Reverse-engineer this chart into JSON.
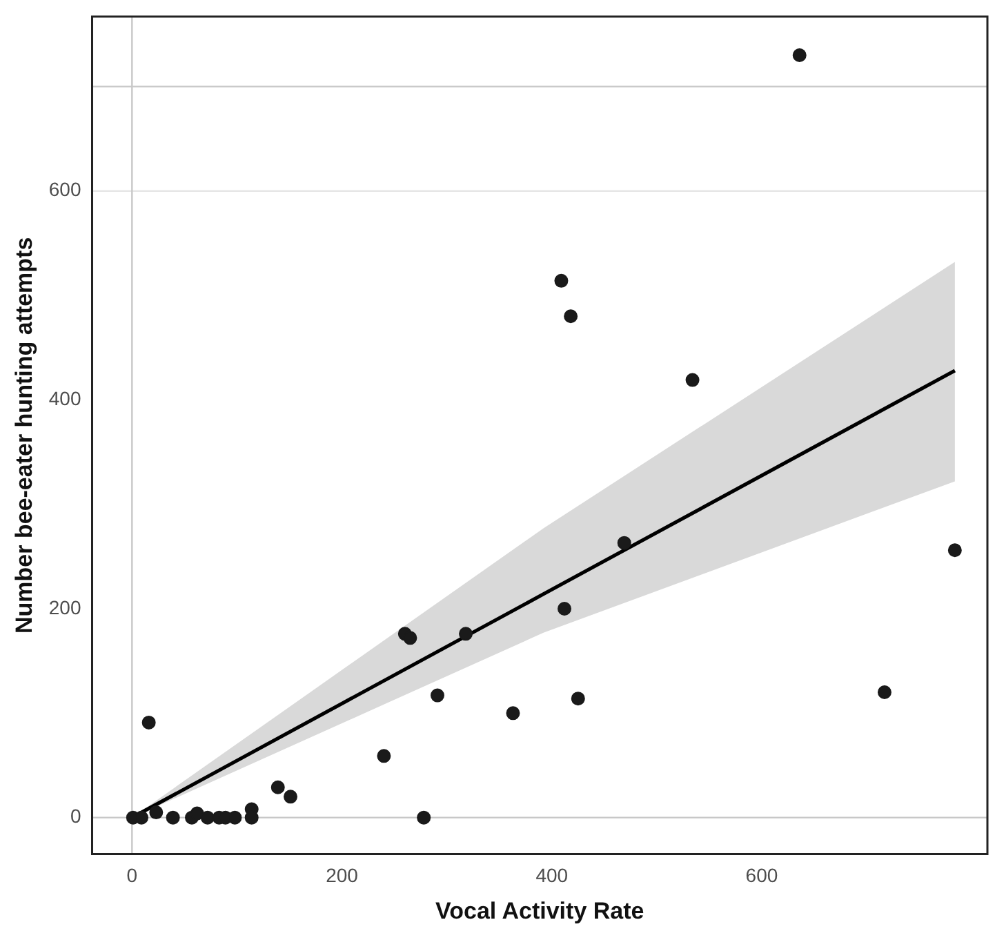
{
  "chart_data": {
    "type": "scatter",
    "xlabel": "Vocal Activity Rate",
    "ylabel": "Number bee-eater hunting attempts",
    "xlim": [
      -38,
      815
    ],
    "xticks": [
      0,
      200,
      400,
      600
    ],
    "ylim": [
      -35,
      767
    ],
    "yticks": [
      0,
      200,
      400,
      600
    ],
    "grid": false,
    "legend": false,
    "ref_lines": [
      {
        "axis": "y",
        "value": 0,
        "color": "#c8c8c8"
      },
      {
        "axis": "y",
        "value": 600,
        "color": "#e6e6e6"
      },
      {
        "axis": "y",
        "value": 700,
        "color": "#c8c8c8"
      },
      {
        "axis": "x",
        "value": 0,
        "color": "#c8c8c8"
      }
    ],
    "series": [
      {
        "marker": "circle",
        "color": "#1a1a1a",
        "x": [
          1,
          9,
          16,
          23,
          39,
          57,
          62,
          72,
          83,
          89,
          98,
          114,
          114,
          139,
          151,
          240,
          260,
          265,
          278,
          291,
          318,
          363,
          409,
          412,
          418,
          425,
          469,
          534,
          636,
          717,
          784
        ],
        "values": [
          0,
          0,
          91,
          5,
          0,
          0,
          4,
          0,
          0,
          0,
          0,
          8,
          0,
          29,
          20,
          59,
          176,
          172,
          0,
          117,
          176,
          100,
          514,
          200,
          480,
          114,
          263,
          419,
          730,
          120,
          256
        ]
      },
      {
        "type": "line",
        "marker": "none",
        "color": "#000000",
        "x": [
          0,
          392,
          784
        ],
        "values": [
          0,
          214,
          428
        ],
        "lower": [
          0,
          177,
          322
        ],
        "upper": [
          0,
          277,
          532
        ]
      }
    ]
  }
}
